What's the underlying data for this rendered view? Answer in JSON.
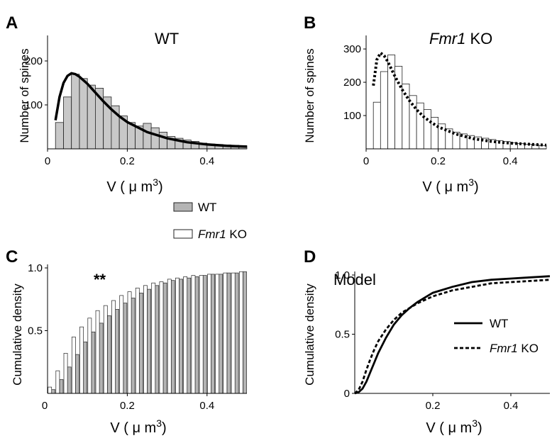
{
  "legend_shared": {
    "items": [
      {
        "label": "WT",
        "fill": "#b4b4b4"
      },
      {
        "label_italic": "Fmr1",
        "label_rest": " KO",
        "fill": "#ffffff"
      }
    ]
  },
  "chart_data": [
    {
      "id": "A",
      "type": "bar",
      "panel_letter": "A",
      "title": "WT",
      "title_italic": "",
      "ylabel": "Number of spines",
      "xlabel_main": "V ( μ m",
      "xlabel_sup": "3",
      "xlabel_close": ")",
      "xlim": [
        0,
        0.5
      ],
      "ylim": [
        0,
        250
      ],
      "xticks": [
        0,
        0.2,
        0.4
      ],
      "xtick_labels": [
        "0",
        "0.2",
        "0.4"
      ],
      "yticks": [
        100,
        200
      ],
      "ytick_labels": [
        "100",
        "200"
      ],
      "bar_color": "#c8c8c8",
      "bin_width": 0.02,
      "x": [
        0.02,
        0.04,
        0.06,
        0.08,
        0.1,
        0.12,
        0.14,
        0.16,
        0.18,
        0.2,
        0.22,
        0.24,
        0.26,
        0.28,
        0.3,
        0.32,
        0.34,
        0.36,
        0.38,
        0.4,
        0.42,
        0.44,
        0.46,
        0.48
      ],
      "values": [
        60,
        118,
        170,
        160,
        145,
        138,
        118,
        98,
        75,
        60,
        52,
        58,
        48,
        38,
        28,
        24,
        20,
        17,
        13,
        11,
        10,
        9,
        8,
        7
      ],
      "fit_curve": {
        "style": "solid",
        "color": "#000000",
        "x": [
          0.02,
          0.03,
          0.04,
          0.05,
          0.06,
          0.07,
          0.08,
          0.1,
          0.12,
          0.14,
          0.16,
          0.18,
          0.2,
          0.25,
          0.3,
          0.35,
          0.4,
          0.45,
          0.5
        ],
        "y": [
          65,
          118,
          150,
          166,
          172,
          170,
          164,
          148,
          128,
          108,
          90,
          74,
          61,
          38,
          24,
          15,
          10,
          7,
          5
        ]
      }
    },
    {
      "id": "B",
      "type": "bar",
      "panel_letter": "B",
      "title": " KO",
      "title_italic": "Fmr1",
      "ylabel": "Number of spines",
      "xlabel_main": "V ( μ m",
      "xlabel_sup": "3",
      "xlabel_close": ")",
      "xlim": [
        0,
        0.5
      ],
      "ylim": [
        0,
        330
      ],
      "xticks": [
        0,
        0.2,
        0.4
      ],
      "xtick_labels": [
        "0",
        "0.2",
        "0.4"
      ],
      "yticks": [
        100,
        200,
        300
      ],
      "ytick_labels": [
        "100",
        "200",
        "300"
      ],
      "bar_color": "#ffffff",
      "bin_width": 0.02,
      "x": [
        0.02,
        0.04,
        0.06,
        0.08,
        0.1,
        0.12,
        0.14,
        0.16,
        0.18,
        0.2,
        0.22,
        0.24,
        0.26,
        0.28,
        0.3,
        0.32,
        0.34,
        0.36,
        0.38,
        0.4,
        0.42,
        0.44,
        0.46,
        0.48
      ],
      "values": [
        140,
        232,
        282,
        248,
        195,
        160,
        138,
        118,
        95,
        75,
        60,
        50,
        45,
        40,
        36,
        32,
        28,
        25,
        22,
        18,
        16,
        14,
        12,
        10
      ],
      "fit_curve": {
        "style": "dotted",
        "color": "#000000",
        "x": [
          0.02,
          0.03,
          0.04,
          0.05,
          0.06,
          0.07,
          0.08,
          0.1,
          0.12,
          0.14,
          0.16,
          0.18,
          0.2,
          0.25,
          0.3,
          0.35,
          0.4,
          0.45,
          0.5
        ],
        "y": [
          190,
          268,
          288,
          280,
          262,
          240,
          218,
          178,
          145,
          118,
          96,
          80,
          66,
          44,
          30,
          22,
          17,
          14,
          11
        ]
      }
    },
    {
      "id": "C",
      "type": "bar",
      "panel_letter": "C",
      "title": "",
      "ylabel": "Cumulative density",
      "xlabel_main": "V ( μ m",
      "xlabel_sup": "3",
      "xlabel_close": ")",
      "annotation": "**",
      "xlim": [
        0,
        0.5
      ],
      "ylim": [
        0,
        1.0
      ],
      "xticks": [
        0.2,
        0.4
      ],
      "xtick_labels": [
        "0.2",
        "0.4"
      ],
      "x0_label": "0",
      "yticks": [
        0.5,
        1.0
      ],
      "ytick_labels": [
        "0.5",
        "1.0"
      ],
      "bin_width": 0.02,
      "x": [
        0.01,
        0.03,
        0.05,
        0.07,
        0.09,
        0.11,
        0.13,
        0.15,
        0.17,
        0.19,
        0.21,
        0.23,
        0.25,
        0.27,
        0.29,
        0.31,
        0.33,
        0.35,
        0.37,
        0.39,
        0.41,
        0.43,
        0.45,
        0.47,
        0.49
      ],
      "series": [
        {
          "name": "WT",
          "color": "#b4b4b4",
          "values": [
            0.03,
            0.11,
            0.21,
            0.31,
            0.41,
            0.49,
            0.56,
            0.62,
            0.67,
            0.72,
            0.76,
            0.8,
            0.83,
            0.86,
            0.88,
            0.9,
            0.91,
            0.92,
            0.93,
            0.94,
            0.95,
            0.95,
            0.96,
            0.96,
            0.97
          ]
        },
        {
          "name": "Fmr1 KO",
          "color": "#ffffff",
          "values": [
            0.05,
            0.18,
            0.32,
            0.45,
            0.53,
            0.6,
            0.66,
            0.7,
            0.74,
            0.78,
            0.81,
            0.84,
            0.86,
            0.88,
            0.89,
            0.91,
            0.92,
            0.93,
            0.94,
            0.94,
            0.95,
            0.95,
            0.96,
            0.96,
            0.97
          ]
        }
      ]
    },
    {
      "id": "D",
      "type": "line",
      "panel_letter": "D",
      "title": "Model",
      "ylabel": "Cumulative density",
      "xlabel_main": "V ( μ m",
      "xlabel_sup": "3",
      "xlabel_close": ")",
      "xlim": [
        0,
        0.5
      ],
      "ylim": [
        0,
        1.0
      ],
      "xticks": [
        0.2,
        0.4
      ],
      "xtick_labels": [
        "0.2",
        "0.4"
      ],
      "yticks": [
        0,
        0.5,
        1.0
      ],
      "ytick_labels": [
        "0",
        "0.5",
        "1.0"
      ],
      "legend": [
        {
          "label": "WT",
          "style": "solid"
        },
        {
          "label_italic": "Fmr1",
          "label_rest": " KO",
          "style": "dashed"
        }
      ],
      "series": [
        {
          "name": "WT",
          "style": "solid",
          "x": [
            0,
            0.01,
            0.02,
            0.03,
            0.04,
            0.05,
            0.06,
            0.08,
            0.1,
            0.12,
            0.14,
            0.16,
            0.18,
            0.2,
            0.25,
            0.3,
            0.35,
            0.4,
            0.45,
            0.5
          ],
          "y": [
            0,
            0.01,
            0.04,
            0.1,
            0.18,
            0.26,
            0.34,
            0.47,
            0.58,
            0.66,
            0.72,
            0.77,
            0.81,
            0.85,
            0.9,
            0.94,
            0.96,
            0.97,
            0.98,
            0.99
          ]
        },
        {
          "name": "Fmr1 KO",
          "style": "dashed",
          "x": [
            0,
            0.01,
            0.02,
            0.03,
            0.04,
            0.05,
            0.06,
            0.08,
            0.1,
            0.12,
            0.14,
            0.16,
            0.18,
            0.2,
            0.25,
            0.3,
            0.35,
            0.4,
            0.45,
            0.5
          ],
          "y": [
            0,
            0.03,
            0.1,
            0.2,
            0.29,
            0.37,
            0.44,
            0.54,
            0.62,
            0.68,
            0.72,
            0.76,
            0.79,
            0.82,
            0.87,
            0.9,
            0.93,
            0.94,
            0.95,
            0.96
          ]
        }
      ]
    }
  ]
}
